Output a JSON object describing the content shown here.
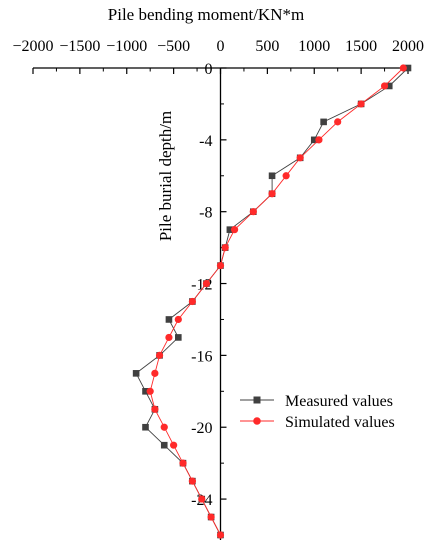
{
  "chart_data": {
    "type": "line",
    "title": "",
    "xlabel": "Pile bending moment/KN*m",
    "ylabel": "Pile burial depth/m",
    "xlim": [
      -2000,
      2000
    ],
    "ylim": [
      -26,
      0
    ],
    "x_ticks": [
      -2000,
      -1500,
      -1000,
      -500,
      0,
      500,
      1000,
      1500,
      2000
    ],
    "x_tick_labels": [
      "−2000",
      "−1500",
      "−1000",
      "−500",
      "0",
      "500",
      "1000",
      "1500",
      "2000"
    ],
    "y_ticks": [
      0,
      -4,
      -8,
      -12,
      -16,
      -20,
      -24
    ],
    "y_tick_labels": [
      "0",
      "-4",
      "-8",
      "-12",
      "-16",
      "-20",
      "-24"
    ],
    "x_axis_position": "top",
    "y_axis_at_x": 0,
    "grid": false,
    "legend": "bottom-right",
    "series": [
      {
        "name": "Measured values",
        "color": "#404040",
        "marker": "square",
        "points": [
          {
            "x": 2000,
            "y": 0
          },
          {
            "x": 1800,
            "y": -1
          },
          {
            "x": 1500,
            "y": -2
          },
          {
            "x": 1100,
            "y": -3
          },
          {
            "x": 1000,
            "y": -4
          },
          {
            "x": 850,
            "y": -5
          },
          {
            "x": 550,
            "y": -6
          },
          {
            "x": 550,
            "y": -7
          },
          {
            "x": 350,
            "y": -8
          },
          {
            "x": 100,
            "y": -9
          },
          {
            "x": 50,
            "y": -10
          },
          {
            "x": 0,
            "y": -11
          },
          {
            "x": -150,
            "y": -12
          },
          {
            "x": -300,
            "y": -13
          },
          {
            "x": -550,
            "y": -14
          },
          {
            "x": -450,
            "y": -15
          },
          {
            "x": -650,
            "y": -16
          },
          {
            "x": -900,
            "y": -17
          },
          {
            "x": -800,
            "y": -18
          },
          {
            "x": -700,
            "y": -19
          },
          {
            "x": -800,
            "y": -20
          },
          {
            "x": -600,
            "y": -21
          },
          {
            "x": -400,
            "y": -22
          },
          {
            "x": -300,
            "y": -23
          },
          {
            "x": -200,
            "y": -24
          },
          {
            "x": -100,
            "y": -25
          },
          {
            "x": 0,
            "y": -26
          }
        ]
      },
      {
        "name": "Simulated values",
        "color": "#ff2a2a",
        "marker": "circle",
        "points": [
          {
            "x": 1950,
            "y": 0
          },
          {
            "x": 1750,
            "y": -1
          },
          {
            "x": 1500,
            "y": -2
          },
          {
            "x": 1250,
            "y": -3
          },
          {
            "x": 1050,
            "y": -4
          },
          {
            "x": 850,
            "y": -5
          },
          {
            "x": 700,
            "y": -6
          },
          {
            "x": 550,
            "y": -7
          },
          {
            "x": 350,
            "y": -8
          },
          {
            "x": 150,
            "y": -9
          },
          {
            "x": 50,
            "y": -10
          },
          {
            "x": 0,
            "y": -11
          },
          {
            "x": -150,
            "y": -12
          },
          {
            "x": -300,
            "y": -13
          },
          {
            "x": -450,
            "y": -14
          },
          {
            "x": -550,
            "y": -15
          },
          {
            "x": -650,
            "y": -16
          },
          {
            "x": -700,
            "y": -17
          },
          {
            "x": -750,
            "y": -18
          },
          {
            "x": -700,
            "y": -19
          },
          {
            "x": -600,
            "y": -20
          },
          {
            "x": -500,
            "y": -21
          },
          {
            "x": -400,
            "y": -22
          },
          {
            "x": -300,
            "y": -23
          },
          {
            "x": -200,
            "y": -24
          },
          {
            "x": -100,
            "y": -25
          },
          {
            "x": 0,
            "y": -26
          }
        ]
      }
    ]
  }
}
